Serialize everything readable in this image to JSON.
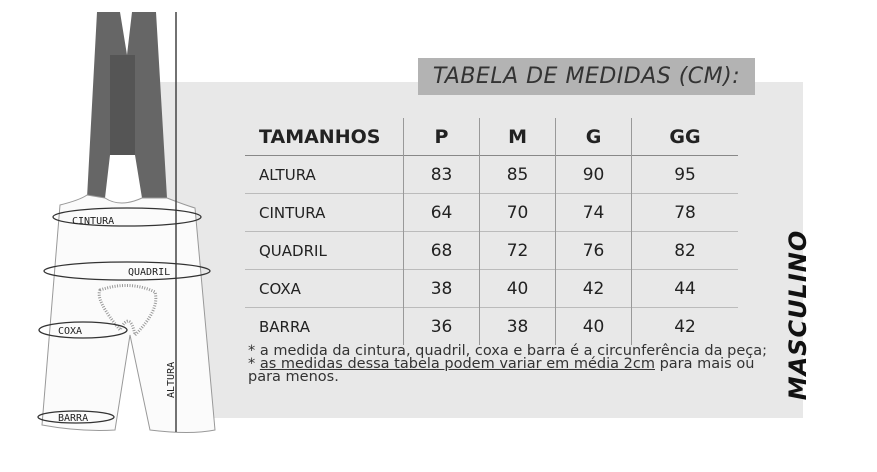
{
  "title": "TABELA DE MEDIDAS (CM):",
  "side_label": "MASCULINO",
  "illustration": {
    "labels": {
      "cintura": "CINTURA",
      "quadril": "QUADRIL",
      "coxa": "COXA",
      "barra": "BARRA",
      "altura": "ALTURA"
    }
  },
  "table": {
    "headers": [
      "TAMANHOS",
      "P",
      "M",
      "G",
      "GG"
    ],
    "rows": [
      {
        "label": "ALTURA",
        "values": [
          "83",
          "85",
          "90",
          "95"
        ]
      },
      {
        "label": "CINTURA",
        "values": [
          "64",
          "70",
          "74",
          "78"
        ]
      },
      {
        "label": "QUADRIL",
        "values": [
          "68",
          "72",
          "76",
          "82"
        ]
      },
      {
        "label": "COXA",
        "values": [
          "38",
          "40",
          "42",
          "44"
        ]
      },
      {
        "label": "BARRA",
        "values": [
          "36",
          "38",
          "40",
          "42"
        ]
      }
    ]
  },
  "notes": {
    "note1": "a medida da cintura, quadril, coxa e barra é a circunferência da peça;",
    "note2_underlined": "as medidas dessa tabela podem variar em média 2cm",
    "note2_rest": " para mais ou para menos."
  }
}
